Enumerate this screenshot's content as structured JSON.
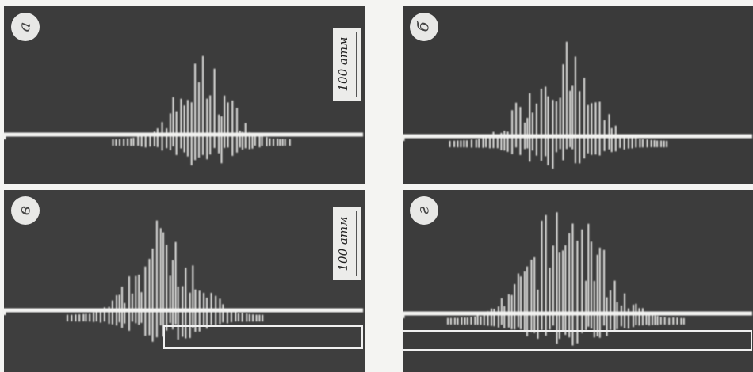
{
  "panels": [
    {
      "label": "а",
      "scale": "100 атм"
    },
    {
      "label": "б"
    },
    {
      "label": "в",
      "scale": "100 атм"
    },
    {
      "label": "г"
    }
  ]
}
